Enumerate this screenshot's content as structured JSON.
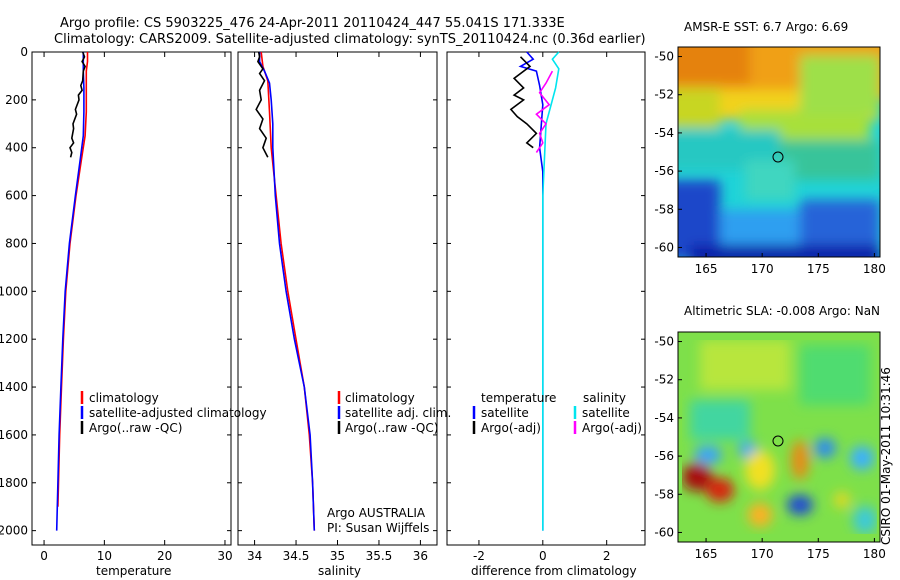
{
  "header": {
    "line1": "Argo profile: CS 5903225_476 24-Apr-2011 20110424_447 55.041S 171.333E",
    "line2": "Climatology: CARS2009. Satellite-adjusted climatology: synTS_20110424.nc (0.36d earlier)"
  },
  "depth_axis": {
    "ticks": [
      "0",
      "200",
      "400",
      "600",
      "800",
      "1000",
      "1200",
      "1400",
      "1600",
      "1800",
      "2000"
    ]
  },
  "colors": {
    "climatology": "#ff0000",
    "satellite": "#0000ff",
    "argo": "#000000",
    "sat_salinity": "#00e5ee",
    "argo_adj_salinity": "#ff00ff"
  },
  "chart_data": [
    {
      "type": "line",
      "name": "temperature",
      "xlabel": "temperature",
      "xlim": [
        -2,
        31
      ],
      "ylim": [
        2060,
        0
      ],
      "xticks": [
        "0",
        "10",
        "20",
        "30"
      ],
      "legend": [
        "climatology",
        "satellite-adjusted climatology",
        "Argo(..raw -QC)"
      ],
      "series": [
        {
          "name": "climatology",
          "color": "#ff0000",
          "points": [
            [
              7.2,
              0
            ],
            [
              7.2,
              40
            ],
            [
              7.0,
              80
            ],
            [
              7.0,
              150
            ],
            [
              7.0,
              250
            ],
            [
              6.8,
              350
            ],
            [
              6.2,
              450
            ],
            [
              5.3,
              600
            ],
            [
              4.3,
              800
            ],
            [
              3.6,
              1000
            ],
            [
              3.2,
              1200
            ],
            [
              2.9,
              1400
            ],
            [
              2.6,
              1600
            ],
            [
              2.4,
              1800
            ],
            [
              2.3,
              1900
            ]
          ]
        },
        {
          "name": "satellite",
          "color": "#0000ff",
          "points": [
            [
              6.5,
              0
            ],
            [
              6.5,
              40
            ],
            [
              6.5,
              80
            ],
            [
              6.6,
              150
            ],
            [
              6.6,
              250
            ],
            [
              6.5,
              350
            ],
            [
              6.0,
              450
            ],
            [
              5.2,
              600
            ],
            [
              4.2,
              800
            ],
            [
              3.5,
              1000
            ],
            [
              3.1,
              1200
            ],
            [
              2.8,
              1400
            ],
            [
              2.5,
              1600
            ],
            [
              2.3,
              1800
            ],
            [
              2.1,
              2000
            ]
          ]
        },
        {
          "name": "argo",
          "color": "#000000",
          "points": [
            [
              6.4,
              0
            ],
            [
              6.7,
              20
            ],
            [
              6.3,
              40
            ],
            [
              6.8,
              60
            ],
            [
              6.5,
              80
            ],
            [
              6.4,
              120
            ],
            [
              6.1,
              140
            ],
            [
              6.3,
              160
            ],
            [
              5.7,
              180
            ],
            [
              5.8,
              200
            ],
            [
              5.2,
              240
            ],
            [
              5.4,
              260
            ],
            [
              4.8,
              300
            ],
            [
              4.9,
              320
            ],
            [
              4.6,
              360
            ],
            [
              4.9,
              380
            ],
            [
              4.3,
              400
            ],
            [
              4.6,
              420
            ],
            [
              4.4,
              440
            ]
          ]
        }
      ]
    },
    {
      "type": "line",
      "name": "salinity",
      "xlabel": "salinity",
      "xlim": [
        33.8,
        36.2
      ],
      "ylim": [
        2060,
        0
      ],
      "xticks": [
        "34",
        "34.5",
        "35",
        "35.5",
        "36"
      ],
      "legend": [
        "climatology",
        "satellite adj. clim.",
        "Argo(..raw -QC)"
      ],
      "annotation": [
        "Argo AUSTRALIA",
        "PI: Susan Wijffels"
      ],
      "series": [
        {
          "name": "climatology",
          "color": "#ff0000",
          "points": [
            [
              34.08,
              0
            ],
            [
              34.1,
              60
            ],
            [
              34.16,
              120
            ],
            [
              34.18,
              250
            ],
            [
              34.2,
              400
            ],
            [
              34.26,
              600
            ],
            [
              34.32,
              800
            ],
            [
              34.4,
              1000
            ],
            [
              34.5,
              1200
            ],
            [
              34.6,
              1400
            ],
            [
              34.66,
              1600
            ],
            [
              34.7,
              1800
            ],
            [
              34.72,
              2000
            ]
          ]
        },
        {
          "name": "satellite",
          "color": "#0000ff",
          "points": [
            [
              34.06,
              0
            ],
            [
              34.06,
              40
            ],
            [
              34.12,
              80
            ],
            [
              34.18,
              130
            ],
            [
              34.2,
              200
            ],
            [
              34.22,
              300
            ],
            [
              34.22,
              400
            ],
            [
              34.25,
              600
            ],
            [
              34.3,
              800
            ],
            [
              34.38,
              1000
            ],
            [
              34.48,
              1200
            ],
            [
              34.6,
              1400
            ],
            [
              34.67,
              1600
            ],
            [
              34.7,
              1800
            ],
            [
              34.72,
              2000
            ]
          ]
        },
        {
          "name": "argo",
          "color": "#000000",
          "points": [
            [
              34.05,
              0
            ],
            [
              34.06,
              20
            ],
            [
              34.04,
              40
            ],
            [
              34.1,
              70
            ],
            [
              34.06,
              90
            ],
            [
              34.12,
              120
            ],
            [
              34.06,
              160
            ],
            [
              34.08,
              200
            ],
            [
              34.02,
              240
            ],
            [
              34.1,
              280
            ],
            [
              34.06,
              320
            ],
            [
              34.14,
              360
            ],
            [
              34.1,
              400
            ],
            [
              34.16,
              440
            ]
          ]
        }
      ]
    },
    {
      "type": "line",
      "name": "difference",
      "xlabel": "difference from climatology",
      "xlim": [
        -3,
        3.2
      ],
      "ylim": [
        2060,
        0
      ],
      "xticks": [
        "-2",
        "0",
        "2"
      ],
      "legend_headers": [
        "temperature",
        "salinity"
      ],
      "legend": [
        "satellite",
        "Argo(-adj)",
        "satellite",
        "Argo(-adj)"
      ],
      "series": [
        {
          "name": "temperature satellite",
          "color": "#0000ff",
          "points": [
            [
              -0.5,
              0
            ],
            [
              -0.3,
              30
            ],
            [
              -0.7,
              60
            ],
            [
              -0.2,
              80
            ],
            [
              -0.1,
              140
            ],
            [
              0,
              220
            ],
            [
              -0.1,
              400
            ],
            [
              0,
              500
            ],
            [
              0,
              700
            ],
            [
              0,
              1000
            ],
            [
              0,
              1500
            ],
            [
              0,
              2000
            ]
          ]
        },
        {
          "name": "temperature Argo(-adj)",
          "color": "#000000",
          "points": [
            [
              -0.7,
              20
            ],
            [
              -0.4,
              60
            ],
            [
              -0.9,
              110
            ],
            [
              -0.6,
              150
            ],
            [
              -0.9,
              180
            ],
            [
              -0.6,
              200
            ],
            [
              -1.0,
              240
            ],
            [
              -0.8,
              270
            ],
            [
              -0.5,
              300
            ],
            [
              -0.2,
              340
            ],
            [
              -0.5,
              380
            ],
            [
              -0.3,
              400
            ]
          ]
        },
        {
          "name": "salinity satellite",
          "color": "#00e5ee",
          "points": [
            [
              0.5,
              0
            ],
            [
              0.3,
              30
            ],
            [
              0.5,
              70
            ],
            [
              0.4,
              150
            ],
            [
              0.1,
              300
            ],
            [
              0,
              600
            ],
            [
              0,
              1000
            ],
            [
              0,
              2000
            ]
          ]
        },
        {
          "name": "salinity Argo(-adj)",
          "color": "#ff00ff",
          "points": [
            [
              0.3,
              80
            ],
            [
              0.1,
              130
            ],
            [
              -0.1,
              170
            ],
            [
              0.2,
              220
            ],
            [
              -0.2,
              260
            ],
            [
              0.1,
              300
            ],
            [
              -0.1,
              340
            ],
            [
              0,
              380
            ],
            [
              -0.2,
              420
            ]
          ]
        }
      ]
    },
    {
      "type": "heatmap",
      "name": "sst_map",
      "title": "AMSR-E SST: 6.7 Argo: 6.69",
      "xlim": [
        162.5,
        180.5
      ],
      "ylim": [
        -60.5,
        -49.5
      ],
      "xticks": [
        "165",
        "170",
        "175",
        "180"
      ],
      "yticks": [
        "-50",
        "-52",
        "-54",
        "-56",
        "-58",
        "-60"
      ],
      "marker": {
        "lon": 171.333,
        "lat": -55.041
      }
    },
    {
      "type": "heatmap",
      "name": "sla_map",
      "title": "Altimetric SLA: -0.008 Argo: NaN",
      "xlim": [
        162.5,
        180.5
      ],
      "ylim": [
        -60.5,
        -49.5
      ],
      "xticks": [
        "165",
        "170",
        "175",
        "180"
      ],
      "yticks": [
        "-50",
        "-52",
        "-54",
        "-56",
        "-58",
        "-60"
      ],
      "marker": {
        "lon": 171.333,
        "lat": -55.041
      }
    }
  ],
  "footer": {
    "credit": "CSIRO 01-May-2011 10:31:46"
  }
}
